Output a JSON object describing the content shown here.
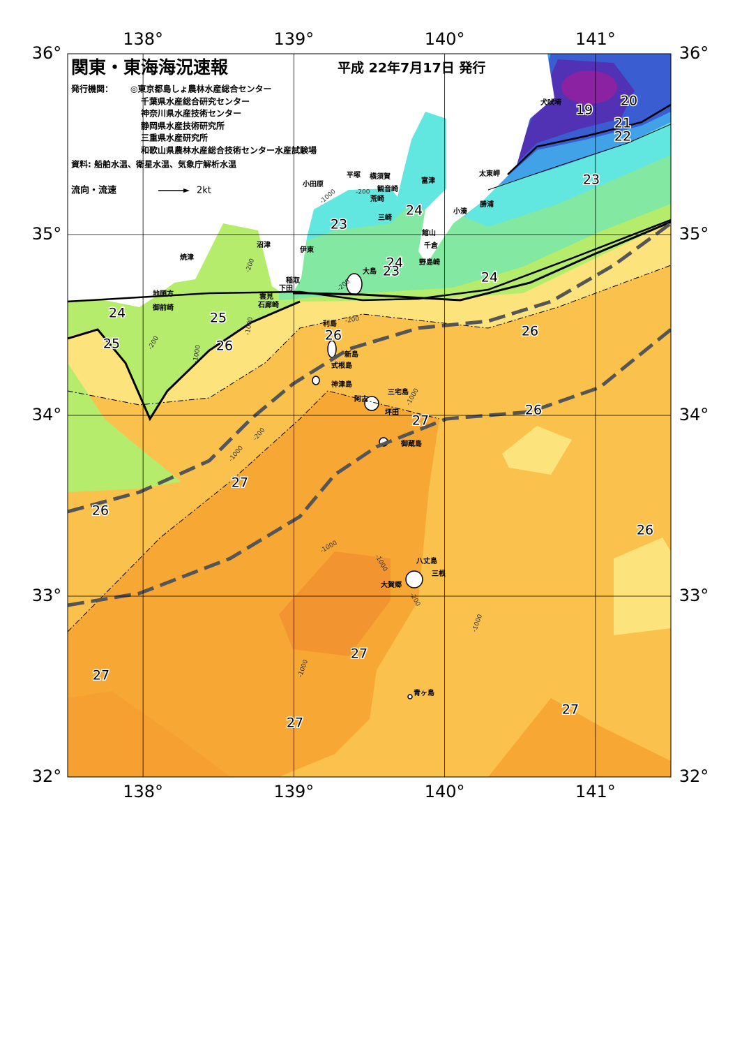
{
  "header": {
    "title": "関東・東海海況速報",
    "issued": "平成 22年7月17日 発行",
    "issuers_label": "発行機関：",
    "issuers": [
      "◎東京都島しょ農林水産総合センター",
      "千葉県水産総合研究センター",
      "神奈川県水産技術センター",
      "静岡県水産技術研究所",
      "三重県水産研究所",
      "和歌山県農林水産総合技術センター水産試験場"
    ],
    "source": "資料: 船舶水温、衛星水温、気象庁解析水温",
    "legend_label": "流向・流速",
    "legend_speed": "2kt"
  },
  "map": {
    "lon_range": [
      137.5,
      141.5
    ],
    "lat_range": [
      32,
      36
    ],
    "lon_ticks": [
      {
        "value": 138,
        "label": "138°"
      },
      {
        "value": 139,
        "label": "139°"
      },
      {
        "value": 140,
        "label": "140°"
      },
      {
        "value": 141,
        "label": "141°"
      }
    ],
    "lat_ticks": [
      {
        "value": 32,
        "label": "32°"
      },
      {
        "value": 33,
        "label": "33°"
      },
      {
        "value": 34,
        "label": "34°"
      },
      {
        "value": 35,
        "label": "35°"
      },
      {
        "value": 36,
        "label": "36°"
      }
    ],
    "places": [
      "犬吠埼",
      "太東岬",
      "勝浦",
      "小湊",
      "富津",
      "館山",
      "千倉",
      "野島崎",
      "横須賀",
      "観音崎",
      "荒崎",
      "三崎",
      "平塚",
      "小田原",
      "沼津",
      "伊東",
      "焼津",
      "稲取",
      "下田",
      "雲見",
      "石廊崎",
      "地頭方",
      "御前崎",
      "大島",
      "利島",
      "新島",
      "式根島",
      "神津島",
      "三宅島",
      "阿古",
      "坪田",
      "御蔵島",
      "八丈島",
      "三根",
      "大賀郷",
      "青ヶ島"
    ],
    "temperature_labels": [
      19,
      20,
      21,
      22,
      23,
      24,
      23,
      24,
      23,
      24,
      24,
      25,
      25,
      26,
      26,
      26,
      26,
      27,
      27,
      26,
      26,
      27,
      27,
      27,
      27
    ],
    "depth_labels": [
      "-200",
      "-1000",
      "-200",
      "-200",
      "-200",
      "-1000",
      "-200",
      "-1000",
      "-1000",
      "-1000",
      "-200",
      "-1000",
      "-1000",
      "-1000",
      "-200",
      "-1000"
    ]
  }
}
